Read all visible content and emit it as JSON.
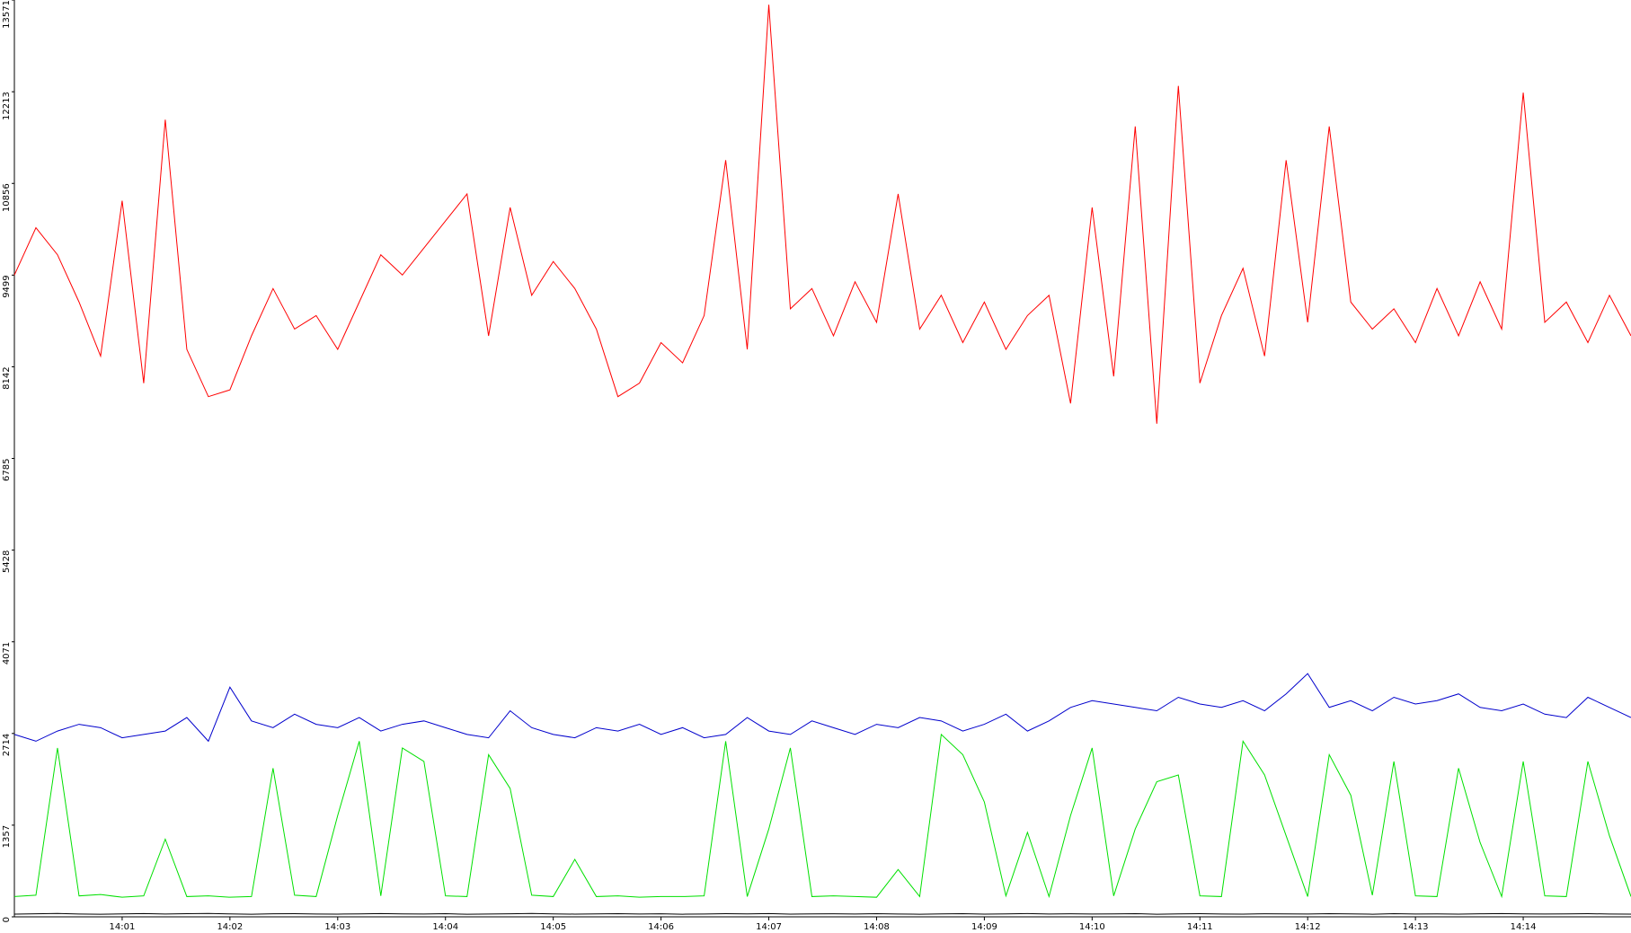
{
  "chart_data": {
    "type": "line",
    "x": [
      0,
      0.2,
      0.4,
      0.6,
      0.8,
      1,
      1.2,
      1.4,
      1.6,
      1.8,
      2,
      2.2,
      2.4,
      2.6,
      2.8,
      3,
      3.2,
      3.4,
      3.6,
      3.8,
      4,
      4.2,
      4.4,
      4.6,
      4.8,
      5,
      5.2,
      5.4,
      5.6,
      5.8,
      6,
      6.2,
      6.4,
      6.6,
      6.8,
      7,
      7.2,
      7.4,
      7.6,
      7.8,
      8,
      8.2,
      8.4,
      8.6,
      8.8,
      9,
      9.2,
      9.4,
      9.6,
      9.8,
      10,
      10.2,
      10.4,
      10.6,
      10.8,
      11,
      11.2,
      11.4,
      11.6,
      11.8,
      12,
      12.2,
      12.4,
      12.6,
      12.8,
      13,
      13.2,
      13.4,
      13.6,
      13.8,
      14,
      14.2,
      14.4,
      14.6,
      14.8,
      15
    ],
    "series": [
      {
        "color": "#ff0000",
        "values": [
          9500,
          10200,
          9800,
          9100,
          8300,
          10600,
          7900,
          11800,
          8400,
          7700,
          7800,
          8600,
          9300,
          8700,
          8900,
          8400,
          9100,
          9800,
          9500,
          9900,
          10300,
          10700,
          8600,
          10500,
          9200,
          9700,
          9300,
          8700,
          7700,
          7900,
          8500,
          8200,
          8900,
          11200,
          8400,
          13500,
          9000,
          9300,
          8600,
          9400,
          8800,
          10700,
          8700,
          9200,
          8500,
          9100,
          8400,
          8900,
          9200,
          7600,
          10500,
          8000,
          11700,
          7300,
          12300,
          7900,
          8900,
          9600,
          8300,
          11200,
          8800,
          11700,
          9100,
          8700,
          9000,
          8500,
          9300,
          8600,
          9400,
          8700,
          12200,
          8800,
          9100,
          8500,
          9200,
          8600
        ]
      },
      {
        "color": "#0000cc",
        "values": [
          2700,
          2600,
          2750,
          2850,
          2800,
          2650,
          2700,
          2750,
          2950,
          2600,
          3400,
          2900,
          2800,
          3000,
          2850,
          2800,
          2950,
          2750,
          2850,
          2900,
          2800,
          2700,
          2650,
          3050,
          2800,
          2700,
          2650,
          2800,
          2750,
          2850,
          2700,
          2800,
          2650,
          2700,
          2950,
          2750,
          2700,
          2900,
          2800,
          2700,
          2850,
          2800,
          2950,
          2900,
          2750,
          2850,
          3000,
          2750,
          2900,
          3100,
          3200,
          3150,
          3100,
          3050,
          3250,
          3150,
          3100,
          3200,
          3050,
          3300,
          3600,
          3100,
          3200,
          3050,
          3250,
          3150,
          3200,
          3300,
          3100,
          3050,
          3150,
          3000,
          2950,
          3250,
          3100,
          2950
        ]
      },
      {
        "color": "#00e000",
        "values": [
          300,
          320,
          2500,
          310,
          330,
          290,
          310,
          1150,
          300,
          310,
          290,
          300,
          2200,
          320,
          300,
          1500,
          2600,
          310,
          2500,
          2300,
          310,
          300,
          2400,
          1900,
          320,
          300,
          850,
          300,
          310,
          290,
          300,
          300,
          310,
          2600,
          300,
          1300,
          2500,
          300,
          310,
          300,
          290,
          700,
          300,
          2700,
          2400,
          1700,
          310,
          1250,
          300,
          1500,
          2500,
          310,
          1300,
          2000,
          2100,
          310,
          300,
          2600,
          2100,
          1200,
          300,
          2400,
          1800,
          320,
          2300,
          310,
          300,
          2200,
          1100,
          300,
          2300,
          310,
          300,
          2300,
          1200,
          300
        ]
      },
      {
        "color": "#000000",
        "values": [
          40,
          45,
          50,
          42,
          38,
          44,
          48,
          41,
          46,
          50,
          43,
          39,
          45,
          47,
          42,
          40,
          44,
          49,
          43,
          41,
          46,
          38,
          42,
          45,
          50,
          44,
          40,
          43,
          47,
          41,
          45,
          39,
          42,
          46,
          44,
          48,
          40,
          43,
          45,
          41,
          47,
          42,
          39,
          44,
          46,
          40,
          43,
          48,
          42,
          45,
          41,
          44,
          47,
          39,
          43,
          46,
          42,
          40,
          45,
          44,
          41,
          47,
          43,
          39,
          46,
          42,
          44,
          40,
          45,
          48,
          43,
          41,
          44,
          46,
          42,
          40
        ]
      }
    ],
    "xlim": [
      0,
      15
    ],
    "ylim": [
      0,
      13571
    ],
    "xticks": [
      {
        "value": 1,
        "label": "14:01"
      },
      {
        "value": 2,
        "label": "14:02"
      },
      {
        "value": 3,
        "label": "14:03"
      },
      {
        "value": 4,
        "label": "14:04"
      },
      {
        "value": 5,
        "label": "14:05"
      },
      {
        "value": 6,
        "label": "14:06"
      },
      {
        "value": 7,
        "label": "14:07"
      },
      {
        "value": 8,
        "label": "14:08"
      },
      {
        "value": 9,
        "label": "14:09"
      },
      {
        "value": 10,
        "label": "14:10"
      },
      {
        "value": 11,
        "label": "14:11"
      },
      {
        "value": 12,
        "label": "14:12"
      },
      {
        "value": 13,
        "label": "14:13"
      },
      {
        "value": 14,
        "label": "14:14"
      }
    ],
    "yticks": [
      0,
      1357,
      2714,
      4071,
      5428,
      6785,
      8142,
      9499,
      10856,
      12213,
      13571
    ]
  }
}
